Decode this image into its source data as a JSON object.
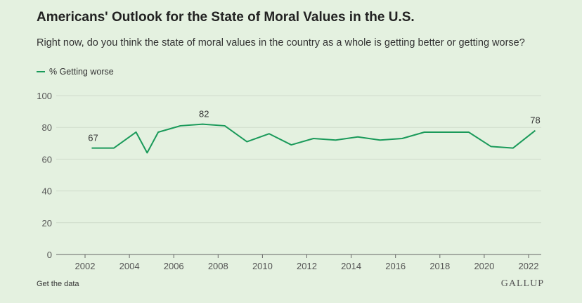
{
  "header": {
    "title": "Americans' Outlook for the State of Moral Values in the U.S.",
    "subtitle": "Right now, do you think the state of moral values in the country as a whole is getting better or getting worse?"
  },
  "footer": {
    "get_data": "Get the data",
    "logo": "GALLUP"
  },
  "colors": {
    "line": "#1a9a5a",
    "grid": "#cfdccb",
    "background": "#e4f1e0"
  },
  "chart_data": {
    "type": "line",
    "title": "Americans' Outlook for the State of Moral Values in the U.S.",
    "xlabel": "",
    "ylabel": "",
    "xlim": [
      2001,
      2022.6
    ],
    "ylim": [
      0,
      100
    ],
    "yticks": [
      0,
      20,
      40,
      60,
      80,
      100
    ],
    "xticks": [
      2002,
      2004,
      2006,
      2008,
      2010,
      2012,
      2014,
      2016,
      2018,
      2020,
      2022
    ],
    "legend": {
      "position": "top-left",
      "entries": [
        "% Getting worse"
      ]
    },
    "series": [
      {
        "name": "% Getting worse",
        "x": [
          2002.3,
          2003.3,
          2004.3,
          2004.8,
          2005.3,
          2006.3,
          2007.3,
          2008.3,
          2009.3,
          2010.3,
          2011.3,
          2012.3,
          2013.3,
          2014.3,
          2015.3,
          2016.3,
          2017.3,
          2018.3,
          2019.3,
          2020.3,
          2021.3,
          2022.3
        ],
        "values": [
          67,
          67,
          77,
          64,
          77,
          81,
          82,
          81,
          71,
          76,
          69,
          73,
          72,
          74,
          72,
          73,
          77,
          77,
          77,
          68,
          67,
          78
        ]
      }
    ],
    "annotations": [
      {
        "x": 2002.3,
        "text": "67"
      },
      {
        "x": 2007.3,
        "text": "82"
      },
      {
        "x": 2022.3,
        "text": "78"
      }
    ]
  }
}
